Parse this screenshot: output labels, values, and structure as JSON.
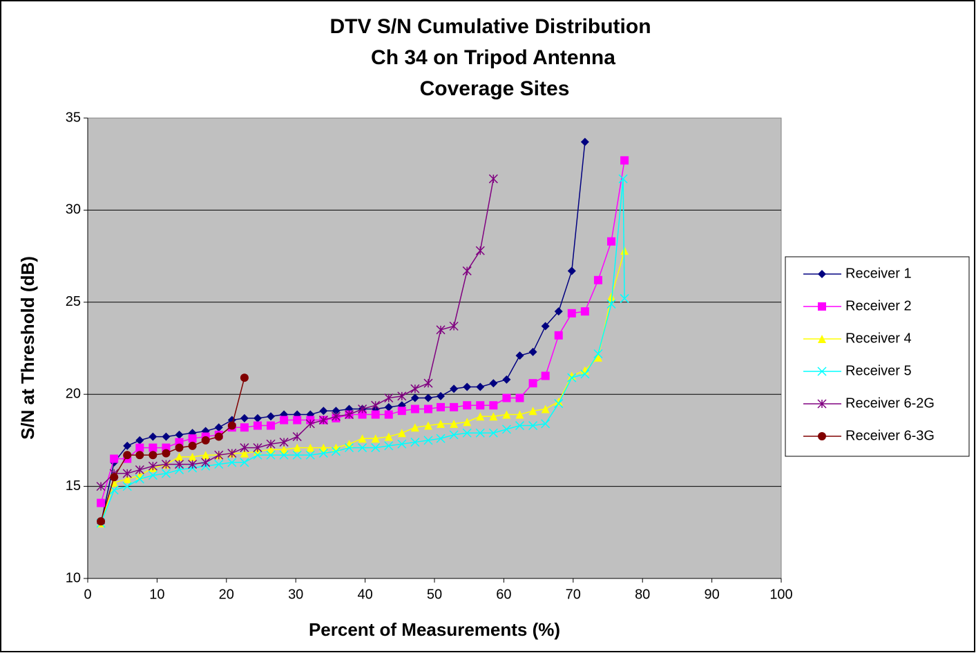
{
  "chart_data": {
    "type": "line",
    "title": [
      "DTV S/N Cumulative Distribution",
      "Ch 34 on Tripod Antenna",
      "Coverage Sites"
    ],
    "x_label": "Percent of Measurements (%)",
    "y_label": "S/N at Threshold (dB)",
    "xlim": [
      0,
      100
    ],
    "xticks": [
      0,
      10,
      20,
      30,
      40,
      50,
      60,
      70,
      80,
      90,
      100
    ],
    "ylim": [
      10,
      35
    ],
    "yticks": [
      10,
      15,
      20,
      25,
      30,
      35
    ],
    "grid": "y",
    "legend": "right",
    "series": [
      {
        "name": "Receiver 1",
        "color": "#000080",
        "marker": "diamond",
        "x": [
          1.9,
          3.8,
          5.7,
          7.5,
          9.4,
          11.3,
          13.2,
          15.1,
          17.0,
          18.9,
          20.8,
          22.6,
          24.5,
          26.4,
          28.3,
          30.2,
          32.1,
          34.0,
          35.8,
          37.7,
          39.6,
          41.5,
          43.4,
          45.3,
          47.2,
          49.1,
          50.9,
          52.8,
          54.7,
          56.6,
          58.5,
          60.4,
          62.3,
          64.2,
          66.0,
          67.9,
          69.8,
          71.7
        ],
        "values": [
          13.0,
          16.3,
          17.2,
          17.5,
          17.7,
          17.7,
          17.8,
          17.9,
          18.0,
          18.2,
          18.6,
          18.7,
          18.7,
          18.8,
          18.9,
          18.9,
          18.9,
          19.1,
          19.1,
          19.2,
          19.2,
          19.2,
          19.3,
          19.4,
          19.8,
          19.8,
          19.9,
          20.3,
          20.4,
          20.4,
          20.6,
          20.8,
          22.1,
          22.3,
          23.7,
          24.5,
          26.7,
          33.7
        ]
      },
      {
        "name": "Receiver 2",
        "color": "#ff00ff",
        "marker": "square",
        "x": [
          1.9,
          3.8,
          5.7,
          7.5,
          9.4,
          11.3,
          13.2,
          15.1,
          17.0,
          18.9,
          20.8,
          22.6,
          24.5,
          26.4,
          28.3,
          30.2,
          32.1,
          34.0,
          35.8,
          37.7,
          39.6,
          41.5,
          43.4,
          45.3,
          47.2,
          49.1,
          50.9,
          52.8,
          54.7,
          56.6,
          58.5,
          60.4,
          62.3,
          64.2,
          66.0,
          67.9,
          69.8,
          71.7,
          73.6,
          75.5,
          77.4
        ],
        "values": [
          14.1,
          16.5,
          16.5,
          17.1,
          17.1,
          17.1,
          17.4,
          17.6,
          17.7,
          17.8,
          18.2,
          18.2,
          18.3,
          18.3,
          18.6,
          18.6,
          18.6,
          18.6,
          18.7,
          18.9,
          18.9,
          18.9,
          18.9,
          19.1,
          19.2,
          19.2,
          19.3,
          19.3,
          19.4,
          19.4,
          19.4,
          19.8,
          19.8,
          20.6,
          21.0,
          23.2,
          24.4,
          24.5,
          26.2,
          28.3,
          32.7
        ]
      },
      {
        "name": "Receiver 4",
        "color": "#ffff00",
        "marker": "triangle",
        "x": [
          1.9,
          3.8,
          5.7,
          7.5,
          9.4,
          11.3,
          13.2,
          15.1,
          17.0,
          18.9,
          20.8,
          22.6,
          24.5,
          26.4,
          28.3,
          30.2,
          32.1,
          34.0,
          35.8,
          37.7,
          39.6,
          41.5,
          43.4,
          45.3,
          47.2,
          49.1,
          50.9,
          52.8,
          54.7,
          56.6,
          58.5,
          60.4,
          62.3,
          64.2,
          66.0,
          67.9,
          69.8,
          71.7,
          73.6,
          75.5,
          77.4
        ],
        "values": [
          13.0,
          15.2,
          15.4,
          15.6,
          16.0,
          16.2,
          16.6,
          16.6,
          16.7,
          16.7,
          16.8,
          16.8,
          16.9,
          17.0,
          17.0,
          17.1,
          17.1,
          17.1,
          17.1,
          17.3,
          17.6,
          17.6,
          17.7,
          17.9,
          18.2,
          18.3,
          18.4,
          18.4,
          18.5,
          18.8,
          18.8,
          18.9,
          18.9,
          19.1,
          19.2,
          19.6,
          21.0,
          21.3,
          22.0,
          25.3,
          27.8
        ]
      },
      {
        "name": "Receiver 5",
        "color": "#00ffff",
        "marker": "x",
        "x": [
          1.9,
          3.8,
          5.7,
          7.5,
          9.4,
          11.3,
          13.2,
          15.1,
          17.0,
          18.9,
          20.8,
          22.6,
          24.5,
          26.4,
          28.3,
          30.2,
          32.1,
          34.0,
          35.8,
          37.7,
          39.6,
          41.5,
          43.4,
          45.3,
          47.2,
          49.1,
          50.9,
          52.8,
          54.7,
          56.6,
          58.5,
          60.4,
          62.3,
          64.2,
          66.0,
          67.9,
          69.8,
          71.7,
          73.6,
          75.5,
          77.2,
          77.4
        ],
        "values": [
          13.0,
          14.8,
          15.0,
          15.4,
          15.6,
          15.7,
          15.9,
          16.0,
          16.1,
          16.2,
          16.3,
          16.3,
          16.7,
          16.7,
          16.7,
          16.7,
          16.7,
          16.8,
          16.9,
          17.1,
          17.1,
          17.1,
          17.2,
          17.3,
          17.4,
          17.5,
          17.6,
          17.8,
          17.9,
          17.9,
          17.9,
          18.1,
          18.3,
          18.3,
          18.4,
          19.5,
          20.9,
          21.1,
          22.2,
          24.9,
          31.7,
          25.2
        ]
      },
      {
        "name": "Receiver 6-2G",
        "color": "#800080",
        "marker": "star",
        "x": [
          1.9,
          3.8,
          5.7,
          7.5,
          9.4,
          11.3,
          13.2,
          15.1,
          17.0,
          18.9,
          20.8,
          22.6,
          24.5,
          26.4,
          28.3,
          30.2,
          32.1,
          34.0,
          35.8,
          37.7,
          39.6,
          41.5,
          43.4,
          45.3,
          47.2,
          49.1,
          50.9,
          52.8,
          54.7,
          56.6,
          58.5
        ],
        "values": [
          15.0,
          15.7,
          15.7,
          15.9,
          16.1,
          16.2,
          16.2,
          16.2,
          16.3,
          16.7,
          16.8,
          17.1,
          17.1,
          17.3,
          17.4,
          17.7,
          18.4,
          18.6,
          18.8,
          18.9,
          19.2,
          19.4,
          19.8,
          19.9,
          20.3,
          20.6,
          23.5,
          23.7,
          26.7,
          27.8,
          31.7
        ]
      },
      {
        "name": "Receiver 6-3G",
        "color": "#800000",
        "marker": "circle",
        "x": [
          1.9,
          3.8,
          5.7,
          7.5,
          9.4,
          11.3,
          13.2,
          15.1,
          17.0,
          18.9,
          20.8,
          22.6
        ],
        "values": [
          13.1,
          15.5,
          16.7,
          16.7,
          16.7,
          16.8,
          17.1,
          17.2,
          17.5,
          17.7,
          18.3,
          20.9
        ]
      }
    ]
  }
}
